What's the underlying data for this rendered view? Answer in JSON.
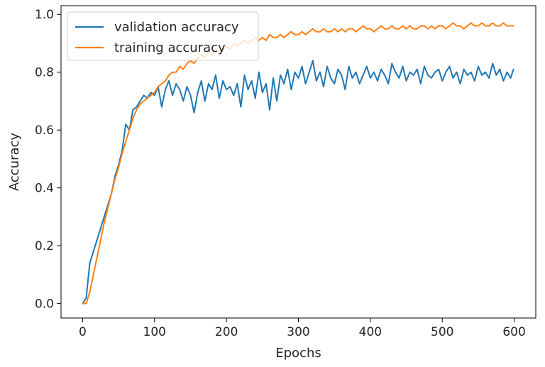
{
  "chart_data": {
    "type": "line",
    "title": "",
    "xlabel": "Epochs",
    "ylabel": "Accuracy",
    "xlim": [
      -30,
      630
    ],
    "ylim": [
      -0.05,
      1.03
    ],
    "xticks": [
      0,
      100,
      200,
      300,
      400,
      500,
      600
    ],
    "yticks": [
      0.0,
      0.2,
      0.4,
      0.6,
      0.8,
      1.0
    ],
    "xtick_labels": [
      "0",
      "100",
      "200",
      "300",
      "400",
      "500",
      "600"
    ],
    "ytick_labels": [
      "0.0",
      "0.2",
      "0.4",
      "0.6",
      "0.8",
      "1.0"
    ],
    "grid": false,
    "legend_position": "upper-left",
    "legend": [
      "validation accuracy",
      "training accuracy"
    ],
    "series": [
      {
        "name": "validation accuracy",
        "color": "#1f77b4",
        "x": [
          0,
          5,
          10,
          15,
          20,
          25,
          30,
          35,
          40,
          45,
          50,
          55,
          60,
          65,
          70,
          75,
          80,
          85,
          90,
          95,
          100,
          105,
          110,
          115,
          120,
          125,
          130,
          135,
          140,
          145,
          150,
          155,
          160,
          165,
          170,
          175,
          180,
          185,
          190,
          195,
          200,
          205,
          210,
          215,
          220,
          225,
          230,
          235,
          240,
          245,
          250,
          255,
          260,
          265,
          270,
          275,
          280,
          285,
          290,
          295,
          300,
          305,
          310,
          315,
          320,
          325,
          330,
          335,
          340,
          345,
          350,
          355,
          360,
          365,
          370,
          375,
          380,
          385,
          390,
          395,
          400,
          405,
          410,
          415,
          420,
          425,
          430,
          435,
          440,
          445,
          450,
          455,
          460,
          465,
          470,
          475,
          480,
          485,
          490,
          495,
          500,
          505,
          510,
          515,
          520,
          525,
          530,
          535,
          540,
          545,
          550,
          555,
          560,
          565,
          570,
          575,
          580,
          585,
          590,
          595,
          599
        ],
        "y": [
          0.0,
          0.02,
          0.14,
          0.18,
          0.22,
          0.26,
          0.3,
          0.34,
          0.38,
          0.44,
          0.48,
          0.53,
          0.62,
          0.6,
          0.67,
          0.68,
          0.7,
          0.72,
          0.71,
          0.73,
          0.72,
          0.75,
          0.68,
          0.74,
          0.77,
          0.72,
          0.76,
          0.74,
          0.7,
          0.75,
          0.72,
          0.66,
          0.73,
          0.77,
          0.7,
          0.76,
          0.74,
          0.79,
          0.71,
          0.77,
          0.74,
          0.75,
          0.72,
          0.76,
          0.68,
          0.79,
          0.74,
          0.77,
          0.71,
          0.8,
          0.73,
          0.76,
          0.67,
          0.78,
          0.7,
          0.79,
          0.76,
          0.81,
          0.74,
          0.8,
          0.78,
          0.82,
          0.76,
          0.8,
          0.84,
          0.77,
          0.8,
          0.75,
          0.82,
          0.78,
          0.76,
          0.81,
          0.79,
          0.74,
          0.82,
          0.78,
          0.8,
          0.76,
          0.79,
          0.82,
          0.78,
          0.8,
          0.77,
          0.81,
          0.79,
          0.76,
          0.83,
          0.8,
          0.78,
          0.82,
          0.77,
          0.8,
          0.79,
          0.81,
          0.76,
          0.82,
          0.79,
          0.78,
          0.8,
          0.81,
          0.77,
          0.8,
          0.82,
          0.78,
          0.8,
          0.76,
          0.81,
          0.79,
          0.8,
          0.77,
          0.82,
          0.79,
          0.8,
          0.78,
          0.83,
          0.79,
          0.81,
          0.77,
          0.8,
          0.78,
          0.81
        ]
      },
      {
        "name": "training accuracy",
        "color": "#ff7f0e",
        "x": [
          0,
          5,
          10,
          15,
          20,
          25,
          30,
          35,
          40,
          45,
          50,
          55,
          60,
          65,
          70,
          75,
          80,
          85,
          90,
          95,
          100,
          105,
          110,
          115,
          120,
          125,
          130,
          135,
          140,
          145,
          150,
          155,
          160,
          165,
          170,
          175,
          180,
          185,
          190,
          195,
          200,
          205,
          210,
          215,
          220,
          225,
          230,
          235,
          240,
          245,
          250,
          255,
          260,
          265,
          270,
          275,
          280,
          285,
          290,
          295,
          300,
          305,
          310,
          315,
          320,
          325,
          330,
          335,
          340,
          345,
          350,
          355,
          360,
          365,
          370,
          375,
          380,
          385,
          390,
          395,
          400,
          405,
          410,
          415,
          420,
          425,
          430,
          435,
          440,
          445,
          450,
          455,
          460,
          465,
          470,
          475,
          480,
          485,
          490,
          495,
          500,
          505,
          510,
          515,
          520,
          525,
          530,
          535,
          540,
          545,
          550,
          555,
          560,
          565,
          570,
          575,
          580,
          585,
          590,
          595,
          599
        ],
        "y": [
          0.0,
          0.0,
          0.04,
          0.1,
          0.16,
          0.22,
          0.28,
          0.33,
          0.38,
          0.43,
          0.47,
          0.52,
          0.56,
          0.6,
          0.64,
          0.67,
          0.69,
          0.7,
          0.71,
          0.72,
          0.73,
          0.75,
          0.76,
          0.77,
          0.79,
          0.8,
          0.8,
          0.82,
          0.81,
          0.83,
          0.84,
          0.83,
          0.85,
          0.86,
          0.85,
          0.87,
          0.86,
          0.88,
          0.87,
          0.88,
          0.89,
          0.88,
          0.9,
          0.89,
          0.9,
          0.91,
          0.9,
          0.91,
          0.92,
          0.91,
          0.92,
          0.91,
          0.93,
          0.92,
          0.92,
          0.93,
          0.92,
          0.93,
          0.94,
          0.93,
          0.93,
          0.94,
          0.93,
          0.94,
          0.95,
          0.94,
          0.94,
          0.95,
          0.94,
          0.94,
          0.95,
          0.94,
          0.95,
          0.94,
          0.95,
          0.95,
          0.94,
          0.95,
          0.96,
          0.95,
          0.95,
          0.94,
          0.95,
          0.96,
          0.95,
          0.95,
          0.96,
          0.95,
          0.95,
          0.96,
          0.95,
          0.96,
          0.95,
          0.95,
          0.96,
          0.96,
          0.95,
          0.96,
          0.95,
          0.96,
          0.96,
          0.95,
          0.96,
          0.97,
          0.96,
          0.96,
          0.95,
          0.96,
          0.97,
          0.96,
          0.96,
          0.97,
          0.96,
          0.96,
          0.97,
          0.96,
          0.96,
          0.97,
          0.96,
          0.96,
          0.96
        ]
      }
    ]
  }
}
